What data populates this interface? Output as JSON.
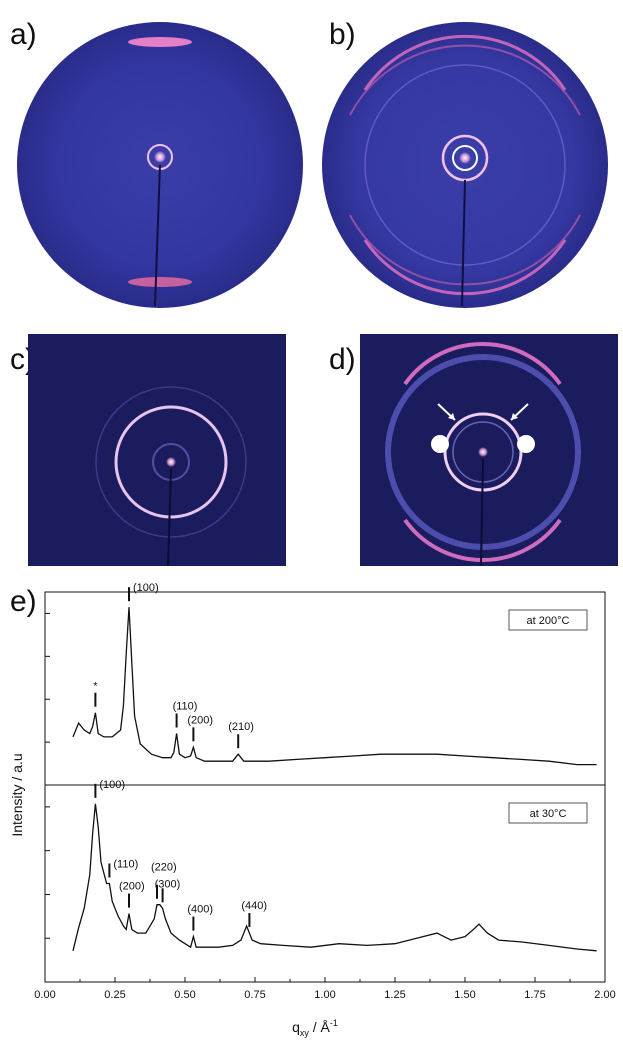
{
  "panels": {
    "a": "a)",
    "b": "b)",
    "c": "c)",
    "d": "d)",
    "e": "e)"
  },
  "colors": {
    "detector_bg": "#2b2f8f",
    "detector_dark": "#141650",
    "ring": "#e8a0d6",
    "hot": "#ffffff"
  },
  "chart_data": {
    "type": "line",
    "xlabel": "q",
    "xlabel_sub": "xy",
    "xlabel_unit": " / Å",
    "xlabel_sup": "-1",
    "ylabel": "Intensity / a.u",
    "xlim": [
      0.0,
      2.0
    ],
    "xticks": [
      "0.00",
      "0.25",
      "0.50",
      "0.75",
      "1.00",
      "1.25",
      "1.50",
      "1.75",
      "2.00"
    ],
    "top": {
      "legend": "at 200°C",
      "annotations": [
        {
          "label": "*",
          "x": 0.18
        },
        {
          "label": "(100)",
          "x": 0.3
        },
        {
          "label": "(110)",
          "x": 0.47
        },
        {
          "label": "(200)",
          "x": 0.53
        },
        {
          "label": "(210)",
          "x": 0.69
        }
      ],
      "series": {
        "x": [
          0.1,
          0.12,
          0.14,
          0.16,
          0.17,
          0.18,
          0.19,
          0.21,
          0.24,
          0.27,
          0.28,
          0.29,
          0.3,
          0.31,
          0.32,
          0.34,
          0.38,
          0.42,
          0.45,
          0.46,
          0.47,
          0.48,
          0.5,
          0.52,
          0.53,
          0.54,
          0.57,
          0.62,
          0.67,
          0.69,
          0.71,
          0.8,
          0.9,
          1.0,
          1.1,
          1.2,
          1.3,
          1.4,
          1.5,
          1.6,
          1.7,
          1.8,
          1.9,
          1.97
        ],
        "y": [
          0.22,
          0.3,
          0.26,
          0.24,
          0.28,
          0.36,
          0.24,
          0.22,
          0.22,
          0.26,
          0.4,
          0.7,
          0.97,
          0.65,
          0.34,
          0.18,
          0.12,
          0.1,
          0.1,
          0.13,
          0.24,
          0.12,
          0.1,
          0.11,
          0.16,
          0.1,
          0.08,
          0.08,
          0.08,
          0.12,
          0.08,
          0.08,
          0.09,
          0.1,
          0.11,
          0.12,
          0.12,
          0.12,
          0.11,
          0.1,
          0.09,
          0.08,
          0.06,
          0.06
        ]
      }
    },
    "bottom": {
      "legend": "at 30°C",
      "annotations": [
        {
          "label": "(100)",
          "x": 0.18
        },
        {
          "label": "(110)",
          "x": 0.23
        },
        {
          "label": "(200)",
          "x": 0.3
        },
        {
          "label": "(220)",
          "x": 0.4
        },
        {
          "label": "(300)",
          "x": 0.42
        },
        {
          "label": "(400)",
          "x": 0.53
        },
        {
          "label": "(440)",
          "x": 0.73
        }
      ],
      "series": {
        "x": [
          0.1,
          0.12,
          0.14,
          0.16,
          0.17,
          0.18,
          0.19,
          0.2,
          0.22,
          0.23,
          0.24,
          0.26,
          0.28,
          0.29,
          0.3,
          0.31,
          0.33,
          0.36,
          0.39,
          0.4,
          0.41,
          0.42,
          0.43,
          0.45,
          0.48,
          0.51,
          0.52,
          0.53,
          0.54,
          0.57,
          0.62,
          0.67,
          0.7,
          0.72,
          0.74,
          0.77,
          0.85,
          0.95,
          1.05,
          1.15,
          1.25,
          1.35,
          1.4,
          1.45,
          1.5,
          1.53,
          1.55,
          1.58,
          1.62,
          1.7,
          1.8,
          1.9,
          1.97
        ],
        "y": [
          0.12,
          0.25,
          0.36,
          0.55,
          0.78,
          0.95,
          0.82,
          0.62,
          0.5,
          0.5,
          0.4,
          0.32,
          0.26,
          0.24,
          0.33,
          0.24,
          0.22,
          0.22,
          0.3,
          0.38,
          0.38,
          0.36,
          0.3,
          0.22,
          0.18,
          0.15,
          0.14,
          0.2,
          0.14,
          0.14,
          0.14,
          0.15,
          0.18,
          0.26,
          0.18,
          0.16,
          0.15,
          0.14,
          0.16,
          0.15,
          0.16,
          0.2,
          0.22,
          0.18,
          0.2,
          0.24,
          0.27,
          0.22,
          0.18,
          0.17,
          0.15,
          0.13,
          0.12
        ]
      }
    }
  }
}
